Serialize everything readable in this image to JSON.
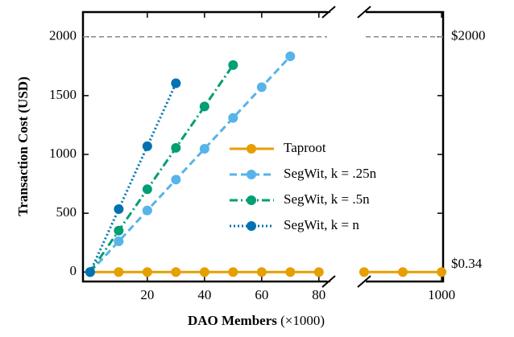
{
  "chart_data": {
    "type": "line",
    "ylabel": "Transaction Cost (USD)",
    "xlabel": "DAO Members",
    "xlabel_unit": "(×1000)",
    "ylim": [
      -80,
      2210
    ],
    "yticks": [
      0,
      500,
      1000,
      1500,
      2000
    ],
    "xlim": [
      -2.5,
      84
    ],
    "xticks": [
      20,
      40,
      60,
      80
    ],
    "x2lim": [
      898,
      1002
    ],
    "x2ticks": [
      1000
    ],
    "hline": 2000,
    "annotations": [
      {
        "text": "$2000",
        "y": 2000
      },
      {
        "text": "$0.34",
        "y": 0.34
      }
    ],
    "series": [
      {
        "name": "Taproot",
        "color": "#e69f00",
        "style": "solid",
        "x": [
          0,
          10,
          20,
          30,
          40,
          50,
          60,
          70,
          80,
          900,
          950,
          1000
        ],
        "values": [
          0.34,
          0.34,
          0.34,
          0.34,
          0.34,
          0.34,
          0.34,
          0.34,
          0.34,
          0.34,
          0.34,
          0.34
        ]
      },
      {
        "name": "SegWit, k = .25n",
        "color": "#56b4e9",
        "style": "dashed",
        "x": [
          0,
          10,
          20,
          30,
          40,
          50,
          60,
          70
        ],
        "values": [
          0,
          262,
          524,
          786,
          1048,
          1310,
          1572,
          1834
        ]
      },
      {
        "name": "SegWit, k = .5n",
        "color": "#009e73",
        "style": "dashdot",
        "x": [
          0,
          10,
          20,
          30,
          40,
          50
        ],
        "values": [
          0,
          352,
          704,
          1056,
          1408,
          1760
        ]
      },
      {
        "name": "SegWit, k = n",
        "color": "#0072b2",
        "style": "dotted",
        "x": [
          0,
          10,
          20,
          30
        ],
        "values": [
          0,
          535,
          1070,
          1605
        ]
      }
    ]
  }
}
